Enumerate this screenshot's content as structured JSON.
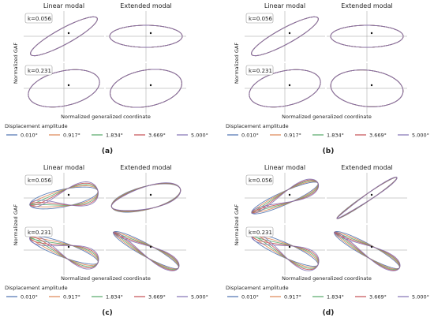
{
  "panels": [
    {
      "letter": "(a)",
      "col_titles": [
        "Linear modal",
        "Extended modal"
      ],
      "row_labels": [
        "k=0.056",
        "k=0.231"
      ],
      "ylabel": "Normalized GAF",
      "xlabel": "Normalized generalized coordinate"
    },
    {
      "letter": "(b)",
      "col_titles": [
        "Linear modal",
        "Extended modal"
      ],
      "row_labels": [
        "k=0.056",
        "k=0.231"
      ],
      "ylabel": "Normalized GAF",
      "xlabel": "Normalized generalized coordinate"
    },
    {
      "letter": "(c)",
      "col_titles": [
        "Linear modal",
        "Extended modal"
      ],
      "row_labels": [
        "k=0.056",
        "k=0.231"
      ],
      "ylabel": "Normalized GAF",
      "xlabel": "Normalized generalized coordinate"
    },
    {
      "letter": "(d)",
      "col_titles": [
        "Linear modal",
        "Extended modal"
      ],
      "row_labels": [
        "k=0.056",
        "k=0.231"
      ],
      "ylabel": "Normalized GAF",
      "xlabel": "Normalized generalized coordinate"
    }
  ],
  "legend": {
    "title": "Displacement amplitude",
    "entries": [
      {
        "label": "0.010°",
        "color": "#4c72b0"
      },
      {
        "label": "0.917°",
        "color": "#dd8452"
      },
      {
        "label": "1.834°",
        "color": "#55a868"
      },
      {
        "label": "3.669°",
        "color": "#c44e52"
      },
      {
        "label": "5.000°",
        "color": "#8172b3"
      }
    ]
  },
  "chart_data": [
    {
      "type": "line",
      "panel": "(a)",
      "series_amplitudes": [
        "0.010°",
        "0.917°",
        "1.834°",
        "3.669°",
        "5.000°"
      ],
      "subplots": [
        {
          "row": "k=0.056",
          "col": "Linear modal",
          "shape": "tilted ellipse",
          "distortion": 0
        },
        {
          "row": "k=0.056",
          "col": "Extended modal",
          "shape": "flat ellipse",
          "distortion": 0
        },
        {
          "row": "k=0.231",
          "col": "Linear modal",
          "shape": "ellipse",
          "distortion": 0
        },
        {
          "row": "k=0.231",
          "col": "Extended modal",
          "shape": "ellipse",
          "distortion": 0
        }
      ]
    },
    {
      "type": "line",
      "panel": "(b)",
      "series_amplitudes": [
        "0.010°",
        "0.917°",
        "1.834°",
        "3.669°",
        "5.000°"
      ],
      "subplots": [
        {
          "row": "k=0.056",
          "col": "Linear modal",
          "shape": "tilted ellipse",
          "distortion": 0
        },
        {
          "row": "k=0.056",
          "col": "Extended modal",
          "shape": "flat ellipse",
          "distortion": 0
        },
        {
          "row": "k=0.231",
          "col": "Linear modal",
          "shape": "ellipse",
          "distortion": 0
        },
        {
          "row": "k=0.231",
          "col": "Extended modal",
          "shape": "ellipse",
          "distortion": 0
        }
      ]
    },
    {
      "type": "line",
      "panel": "(c)",
      "series_amplitudes": [
        "0.010°",
        "0.917°",
        "1.834°",
        "3.669°",
        "5.000°"
      ],
      "subplots": [
        {
          "row": "k=0.056",
          "col": "Linear modal",
          "shape": "figure-eight",
          "distortion": 1
        },
        {
          "row": "k=0.056",
          "col": "Extended modal",
          "shape": "ellipse",
          "distortion": 0.2
        },
        {
          "row": "k=0.231",
          "col": "Linear modal",
          "shape": "figure-eight",
          "distortion": 1
        },
        {
          "row": "k=0.231",
          "col": "Extended modal",
          "shape": "narrow ellipse",
          "distortion": 0.6
        }
      ]
    },
    {
      "type": "line",
      "panel": "(d)",
      "series_amplitudes": [
        "0.010°",
        "0.917°",
        "1.834°",
        "3.669°",
        "5.000°"
      ],
      "subplots": [
        {
          "row": "k=0.056",
          "col": "Linear modal",
          "shape": "narrow ellipse",
          "distortion": 0.7
        },
        {
          "row": "k=0.056",
          "col": "Extended modal",
          "shape": "narrow ellipse",
          "distortion": 0.1
        },
        {
          "row": "k=0.231",
          "col": "Linear modal",
          "shape": "figure-eight",
          "distortion": 1
        },
        {
          "row": "k=0.231",
          "col": "Extended modal",
          "shape": "narrow ellipse",
          "distortion": 0.6
        }
      ]
    }
  ]
}
